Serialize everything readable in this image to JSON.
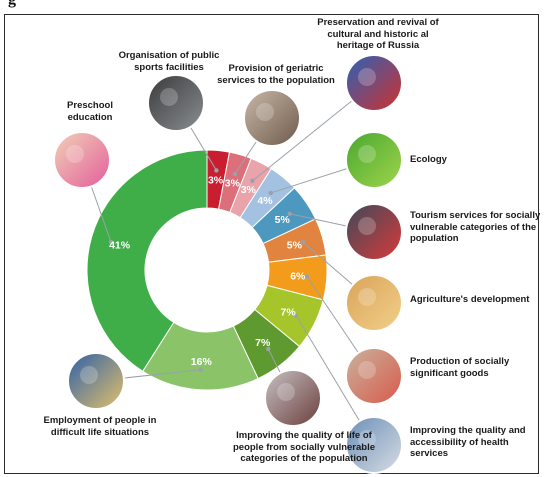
{
  "page_title": "g",
  "colors": {
    "leader_line": "#9aa1a8",
    "photo_ring": "#ffffff"
  },
  "chart_data": {
    "type": "pie",
    "donut": true,
    "title": "",
    "categories": [
      "Organisation of public sports facilities",
      "Provision of geriatric services to the population",
      "Preservation and revival of cultural and historic al heritage of Russia",
      "Ecology",
      "Tourism services for socially vulnerable categories of the population",
      "Agriculture's development",
      "Production of socially significant goods",
      "Improving the quality and accessibility of health services",
      "Improving the quality of life of people from socially vulnerable categories of the population",
      "Employment of people in difficult life situations",
      "Preschool education"
    ],
    "values": [
      3,
      3,
      3,
      4,
      5,
      5,
      6,
      7,
      7,
      16,
      41
    ],
    "value_labels": [
      "3%",
      "3%",
      "3%",
      "4%",
      "5%",
      "5%",
      "6%",
      "7%",
      "7%",
      "16%",
      "41%"
    ],
    "slice_colors": [
      "#c81e2f",
      "#dc6f7a",
      "#e9a3aa",
      "#a3c2e2",
      "#4c98bf",
      "#e0843f",
      "#f39b1a",
      "#a6c52a",
      "#5e9a2f",
      "#8bc468",
      "#3fae49"
    ],
    "photo_colors": [
      [
        "#3a3a3a",
        "#8a8f93"
      ],
      [
        "#c9b8a7",
        "#6d5a4c"
      ],
      [
        "#2a62b8",
        "#d2302c"
      ],
      [
        "#49a82f",
        "#9fd44c"
      ],
      [
        "#3d4a5a",
        "#d93a3a"
      ],
      [
        "#d9a35a",
        "#f2d089"
      ],
      [
        "#c9b39e",
        "#d85a4a"
      ],
      [
        "#6b8fb8",
        "#d8dde3"
      ],
      [
        "#c7c1c4",
        "#6a3e3a"
      ],
      [
        "#2f5fa8",
        "#e2c26a"
      ],
      [
        "#f1d2b8",
        "#e35d9a"
      ]
    ],
    "legend": "none"
  }
}
